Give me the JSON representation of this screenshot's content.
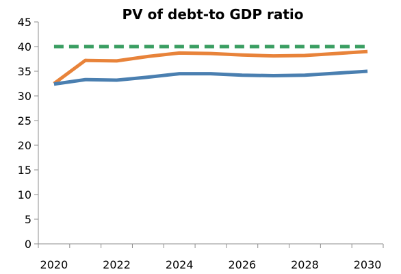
{
  "chart_data": {
    "type": "line",
    "title": "PV of debt-to GDP ratio",
    "xlabel": "",
    "ylabel": "",
    "ylim": [
      0,
      45
    ],
    "yticks": [
      "0",
      "5",
      "10",
      "15",
      "20",
      "25",
      "30",
      "35",
      "40",
      "45"
    ],
    "xticks": [
      "2020",
      "2022",
      "2024",
      "2026",
      "2028",
      "2030"
    ],
    "x": [
      2020,
      2021,
      2022,
      2023,
      2024,
      2025,
      2026,
      2027,
      2028,
      2029,
      2030
    ],
    "grid": false,
    "legend": "none",
    "series": [
      {
        "color": "#e8833a",
        "style": "solid",
        "values": [
          32.5,
          37.2,
          37.1,
          38.0,
          38.7,
          38.6,
          38.3,
          38.1,
          38.2,
          38.6,
          39.0
        ]
      },
      {
        "color": "#4a7fb0",
        "style": "solid",
        "values": [
          32.4,
          33.3,
          33.2,
          33.8,
          34.5,
          34.5,
          34.2,
          34.1,
          34.2,
          34.6,
          35.0
        ]
      },
      {
        "color": "#3a9e62",
        "style": "dashed",
        "values": [
          40,
          40,
          40,
          40,
          40,
          40,
          40,
          40,
          40,
          40,
          40
        ]
      }
    ]
  }
}
